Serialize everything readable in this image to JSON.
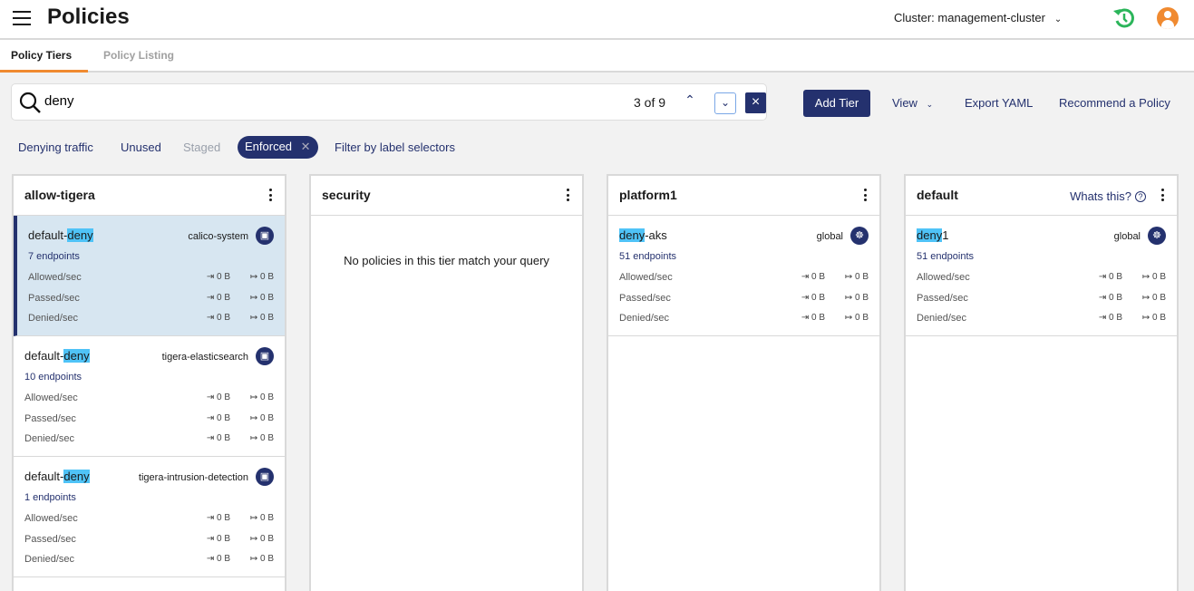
{
  "header": {
    "title": "Policies",
    "cluster": "Cluster: management-cluster",
    "icons": [
      "menu-icon",
      "history-icon",
      "user-avatar-icon"
    ],
    "accent": "#f08a30",
    "history_color": "#2bb55a"
  },
  "tabs": [
    {
      "label": "Policy Tiers",
      "active": true
    },
    {
      "label": "Policy Listing",
      "active": false
    }
  ],
  "search": {
    "value": "deny",
    "count": "3 of 9"
  },
  "toolbar": {
    "add_tier": "Add Tier",
    "view": "View",
    "export": "Export YAML",
    "recommend": "Recommend a Policy"
  },
  "filters": [
    {
      "label": "Denying traffic"
    },
    {
      "label": "Unused"
    },
    {
      "label": "Staged",
      "disabled": true
    },
    {
      "label": "Enforced",
      "active": true
    },
    {
      "label": "Filter by label selectors"
    }
  ],
  "stat_labels": [
    "Allowed/sec",
    "Passed/sec",
    "Denied/sec"
  ],
  "tiers": [
    {
      "name": "allow-tigera",
      "policies": [
        {
          "pre": "default-",
          "hl": "deny",
          "post": "",
          "namespace": "calico-system",
          "endpoints": "7 endpoints",
          "selected": true,
          "stats": [
            [
              "0 B",
              "0 B"
            ],
            [
              "0 B",
              "0 B"
            ],
            [
              "0 B",
              "0 B"
            ]
          ]
        },
        {
          "pre": "default-",
          "hl": "deny",
          "post": "",
          "namespace": "tigera-elasticsearch",
          "endpoints": "10 endpoints",
          "stats": [
            [
              "0 B",
              "0 B"
            ],
            [
              "0 B",
              "0 B"
            ],
            [
              "0 B",
              "0 B"
            ]
          ]
        },
        {
          "pre": "default-",
          "hl": "deny",
          "post": "",
          "namespace": "tigera-intrusion-detection",
          "endpoints": "1 endpoints",
          "stats": [
            [
              "0 B",
              "0 B"
            ],
            [
              "0 B",
              "0 B"
            ],
            [
              "0 B",
              "0 B"
            ]
          ]
        }
      ]
    },
    {
      "name": "security",
      "empty": "No policies in this tier match your query",
      "policies": []
    },
    {
      "name": "platform1",
      "policies": [
        {
          "pre": "",
          "hl": "deny",
          "post": "-aks",
          "namespace": "global",
          "endpoints": "51 endpoints",
          "stats": [
            [
              "0 B",
              "0 B"
            ],
            [
              "0 B",
              "0 B"
            ],
            [
              "0 B",
              "0 B"
            ]
          ]
        }
      ]
    },
    {
      "name": "default",
      "whats": "Whats this?",
      "policies": [
        {
          "pre": "",
          "hl": "deny",
          "post": "1",
          "namespace": "global",
          "endpoints": "51 endpoints",
          "stats": [
            [
              "0 B",
              "0 B"
            ],
            [
              "0 B",
              "0 B"
            ],
            [
              "0 B",
              "0 B"
            ]
          ]
        }
      ]
    }
  ]
}
